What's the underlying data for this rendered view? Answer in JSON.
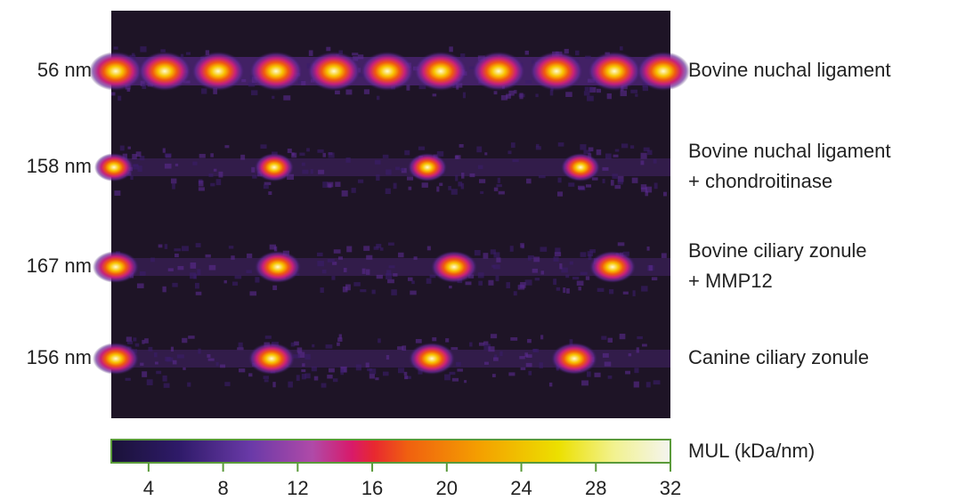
{
  "rows": [
    {
      "period": "56 nm",
      "sample": [
        "Bovine nuchal ligament"
      ]
    },
    {
      "period": "158 nm",
      "sample": [
        "Bovine nuchal ligament",
        "+ chondroitinase"
      ]
    },
    {
      "period": "167 nm",
      "sample": [
        "Bovine ciliary zonule",
        "+ MMP12"
      ]
    },
    {
      "period": "156 nm",
      "sample": [
        "Canine ciliary zonule"
      ]
    }
  ],
  "colorbar": {
    "label": "MUL (kDa/nm)",
    "lim": [
      2,
      32
    ],
    "ticks": [
      4,
      8,
      12,
      16,
      20,
      24,
      28,
      32
    ]
  }
}
